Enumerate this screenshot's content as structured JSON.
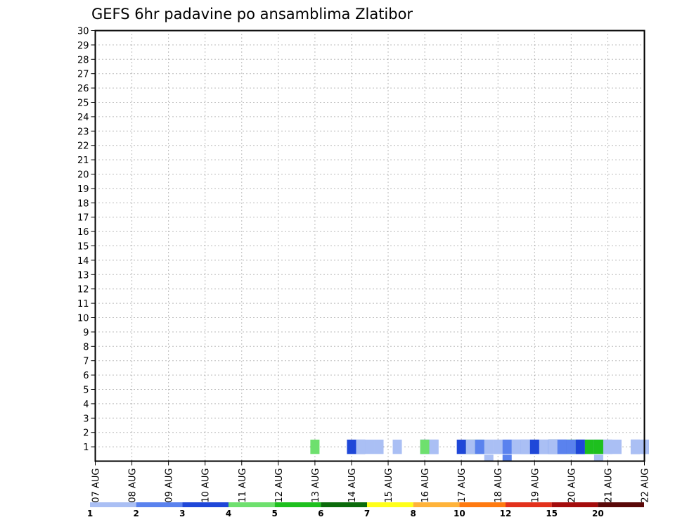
{
  "chart_data": {
    "type": "heatmap",
    "title": "GEFS 6hr padavine po ansamblima Zlatibor",
    "xlabel": "",
    "ylabel": "",
    "x_tick_labels": [
      "07 AUG",
      "08 AUG",
      "09 AUG",
      "10 AUG",
      "11 AUG",
      "12 AUG",
      "13 AUG",
      "14 AUG",
      "15 AUG",
      "16 AUG",
      "17 AUG",
      "18 AUG",
      "19 AUG",
      "20 AUG",
      "21 AUG",
      "22 AUG"
    ],
    "y_tick_labels": [
      "1",
      "2",
      "3",
      "4",
      "5",
      "6",
      "7",
      "8",
      "9",
      "10",
      "11",
      "12",
      "13",
      "14",
      "15",
      "16",
      "17",
      "18",
      "19",
      "20",
      "21",
      "22",
      "23",
      "24",
      "25",
      "26",
      "27",
      "28",
      "29",
      "30"
    ],
    "x_unit": "day (0 = 07 AUG)",
    "xlim": [
      0,
      15
    ],
    "ylim": [
      0,
      30
    ],
    "grid": true,
    "legend": {
      "placement": "bottom",
      "levels": [
        "1",
        "2",
        "3",
        "4",
        "5",
        "6",
        "7",
        "8",
        "10",
        "12",
        "15",
        "20"
      ],
      "colors": [
        "#aabff4",
        "#5a82ee",
        "#1f47d8",
        "#6ee06e",
        "#1ec01e",
        "#0b6b0b",
        "#ffff1a",
        "#ffb33a",
        "#ff7a10",
        "#e3311c",
        "#a40c0c",
        "#5a0808"
      ]
    },
    "cells_fields": [
      "x_day",
      "member",
      "level"
    ],
    "cells": [
      [
        13.75,
        0,
        "1"
      ],
      [
        11.25,
        0,
        "2"
      ],
      [
        10.75,
        0,
        "1"
      ],
      [
        13.25,
        1,
        "3"
      ],
      [
        14.25,
        1,
        "1"
      ],
      [
        15.0,
        1,
        "1"
      ],
      [
        10.0,
        1,
        "3"
      ],
      [
        11.25,
        1,
        "1"
      ],
      [
        11.75,
        1,
        "1"
      ],
      [
        12.5,
        1,
        "3"
      ],
      [
        13.75,
        1,
        "1"
      ],
      [
        13.0,
        1,
        "4"
      ],
      [
        12.75,
        1,
        "1"
      ],
      [
        12.5,
        1,
        "6"
      ],
      [
        14.0,
        1,
        "1"
      ],
      [
        11.5,
        1,
        "2"
      ],
      [
        9.0,
        1,
        "3"
      ],
      [
        11.25,
        1,
        "1"
      ],
      [
        11.75,
        1,
        "1"
      ],
      [
        7.25,
        1,
        "3"
      ],
      [
        10.75,
        1,
        "1"
      ],
      [
        12.5,
        1,
        "2"
      ],
      [
        12.75,
        1,
        "1"
      ],
      [
        12.25,
        1,
        "2"
      ],
      [
        13.75,
        1,
        "1"
      ],
      [
        13.0,
        1,
        "5"
      ],
      [
        12.75,
        1,
        "1"
      ],
      [
        8.25,
        1,
        "1"
      ],
      [
        7.75,
        1,
        "1"
      ],
      [
        10.5,
        1,
        "4"
      ],
      [
        12.75,
        1,
        "1"
      ],
      [
        14.0,
        1,
        "1"
      ],
      [
        11.5,
        1,
        "1"
      ],
      [
        9.0,
        1,
        "1"
      ],
      [
        7.0,
        1,
        "1"
      ],
      [
        11.0,
        1,
        "1"
      ],
      [
        12.0,
        1,
        "2"
      ],
      [
        13.5,
        1,
        "1"
      ],
      [
        7.0,
        1,
        "3"
      ],
      [
        6.0,
        1,
        "4"
      ],
      [
        10.5,
        1,
        "1"
      ],
      [
        11.0,
        1,
        "1"
      ],
      [
        9.25,
        1,
        "2"
      ],
      [
        7.5,
        1,
        "1"
      ],
      [
        12.75,
        1,
        "3"
      ],
      [
        14.75,
        1,
        "3"
      ],
      [
        13.75,
        1,
        "1"
      ],
      [
        13.25,
        1,
        "3"
      ],
      [
        14.0,
        1,
        "1"
      ],
      [
        11.75,
        1,
        "2"
      ],
      [
        10.25,
        1,
        "6"
      ],
      [
        12.0,
        1,
        "1"
      ],
      [
        13.75,
        1,
        "5"
      ],
      [
        15.0,
        1,
        "1"
      ],
      [
        12.25,
        1,
        "1"
      ],
      [
        13.0,
        1,
        "2"
      ],
      [
        11.75,
        1,
        "1"
      ],
      [
        11.25,
        1,
        "2"
      ],
      [
        11.5,
        1,
        "1"
      ],
      [
        12.5,
        1,
        "2"
      ],
      [
        13.25,
        1,
        "3"
      ],
      [
        7.25,
        1,
        "1"
      ],
      [
        9.0,
        1,
        "4"
      ],
      [
        13.5,
        1,
        "1"
      ],
      [
        12.5,
        1,
        "1"
      ],
      [
        10.25,
        1,
        "1"
      ],
      [
        10.75,
        1,
        "1"
      ],
      [
        12.75,
        1,
        "2"
      ],
      [
        12.0,
        1,
        "3"
      ],
      [
        9.25,
        1,
        "1"
      ],
      [
        14.75,
        1,
        "1"
      ],
      [
        10.5,
        1,
        "2"
      ],
      [
        13.5,
        1,
        "5"
      ]
    ]
  }
}
